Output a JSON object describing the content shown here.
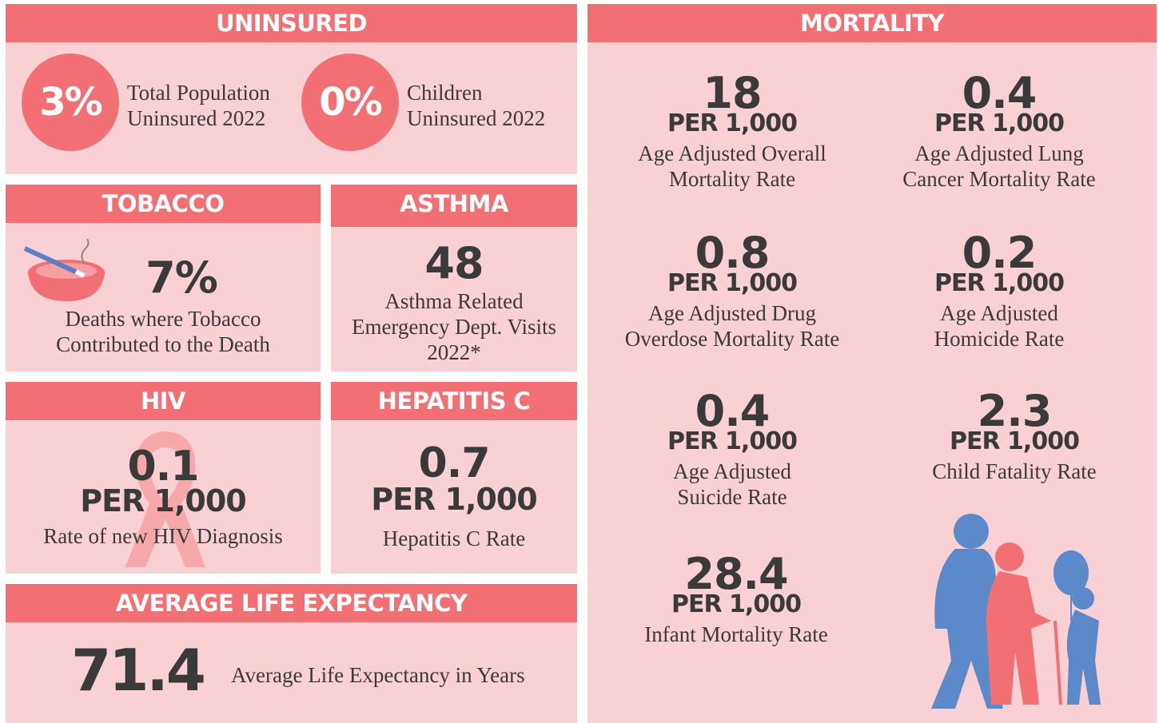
{
  "uninsured": {
    "title": "UNINSURED",
    "items": [
      {
        "value": "3%",
        "label": [
          "Total Population",
          "Uninsured 2022"
        ]
      },
      {
        "value": "0%",
        "label": [
          "Children",
          "Uninsured 2022"
        ]
      }
    ]
  },
  "tobacco": {
    "title": "TOBACCO",
    "value": "7%",
    "label": [
      "Deaths where Tobacco",
      "Contributed to the Death"
    ]
  },
  "asthma": {
    "title": "ASTHMA",
    "value": "48",
    "label": [
      "Asthma Related",
      "Emergency Dept. Visits",
      "2022*"
    ]
  },
  "hiv": {
    "title": "HIV",
    "value": "0.1",
    "unit": "PER 1,000",
    "label": [
      "Rate of new HIV Diagnosis"
    ]
  },
  "hepatitis_c": {
    "title": "HEPATITIS C",
    "value": "0.7",
    "unit": "PER 1,000",
    "label": [
      "Hepatitis C Rate"
    ]
  },
  "life_expectancy": {
    "title": "AVERAGE LIFE EXPECTANCY",
    "value": "71.4",
    "label": [
      "Average Life Expectancy in Years"
    ]
  },
  "mortality": {
    "title": "MORTALITY",
    "items": [
      {
        "value": "18",
        "unit": "PER 1,000",
        "label": [
          "Age Adjusted Overall",
          "Mortality Rate"
        ]
      },
      {
        "value": "0.4",
        "unit": "PER 1,000",
        "label": [
          "Age Adjusted Lung",
          "Cancer Mortality Rate"
        ]
      },
      {
        "value": "0.8",
        "unit": "PER 1,000",
        "label": [
          "Age Adjusted Drug",
          "Overdose Mortality Rate"
        ]
      },
      {
        "value": "0.2",
        "unit": "PER 1,000",
        "label": [
          "Age Adjusted",
          "Homicide Rate"
        ]
      },
      {
        "value": "0.4",
        "unit": "PER 1,000",
        "label": [
          "Age Adjusted",
          "Suicide Rate"
        ]
      },
      {
        "value": "2.3",
        "unit": "PER 1,000",
        "label": [
          "Child Fatality Rate"
        ]
      },
      {
        "value": "28.4",
        "unit": "PER 1,000",
        "label": [
          "Infant Mortality Rate"
        ]
      }
    ]
  }
}
